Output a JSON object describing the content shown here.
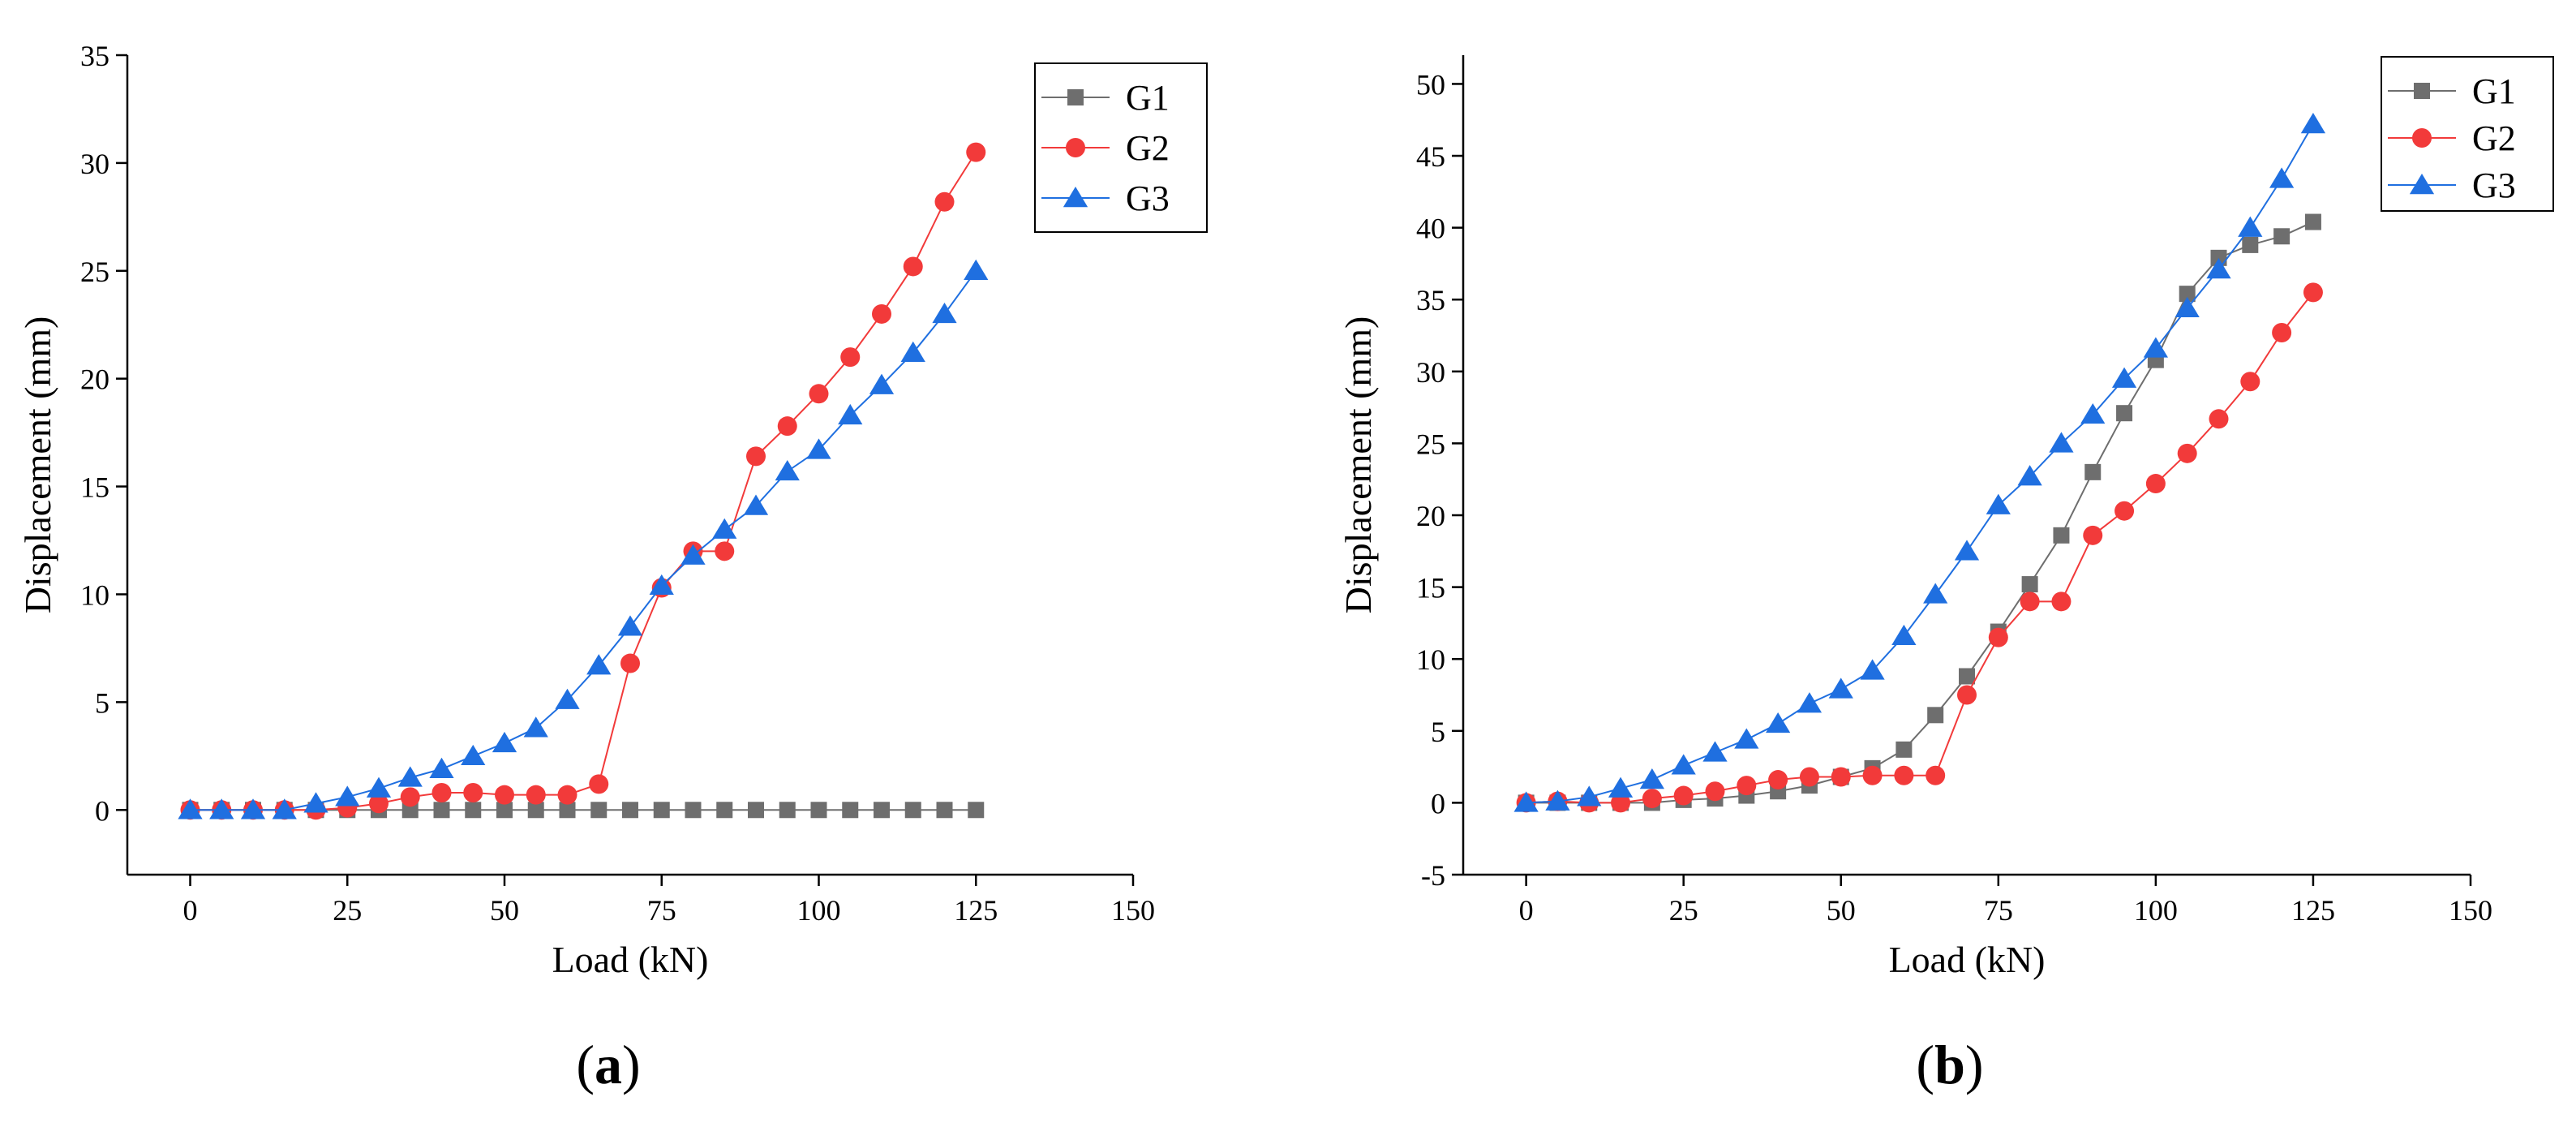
{
  "figure": {
    "panels": [
      {
        "open": "(",
        "letter": "a",
        "close": ")"
      },
      {
        "open": "(",
        "letter": "b",
        "close": ")"
      }
    ]
  },
  "chart_data": [
    {
      "type": "line",
      "title": "",
      "panel_label": "(a)",
      "xlabel": "Load (kN)",
      "ylabel": "Displacement (mm)",
      "xlim": [
        -10,
        150
      ],
      "ylim": [
        -3,
        35
      ],
      "xticks": [
        0,
        25,
        50,
        75,
        100,
        125,
        150
      ],
      "yticks": [
        0,
        5,
        10,
        15,
        20,
        25,
        30,
        35
      ],
      "legend_position": "top-right",
      "x": [
        0,
        5,
        10,
        15,
        20,
        25,
        30,
        35,
        40,
        45,
        50,
        55,
        60,
        65,
        70,
        75,
        80,
        85,
        90,
        95,
        100,
        105,
        110,
        115,
        120,
        125
      ],
      "series": [
        {
          "name": "G1",
          "color": "#6e6e6e",
          "marker": "square",
          "values": [
            0,
            0,
            0,
            0,
            0,
            0,
            0,
            0,
            0,
            0,
            0,
            0,
            0,
            0,
            0,
            0,
            0,
            0,
            0,
            0,
            0,
            0,
            0,
            0,
            0,
            0
          ]
        },
        {
          "name": "G2",
          "color": "#f23a3a",
          "marker": "circle",
          "values": [
            0,
            0,
            0,
            0,
            0,
            0.1,
            0.3,
            0.6,
            0.8,
            0.8,
            0.7,
            0.7,
            0.7,
            1.2,
            6.8,
            10.3,
            12.0,
            12.0,
            16.4,
            17.8,
            19.3,
            21.0,
            23.0,
            25.2,
            28.2,
            30.5
          ]
        },
        {
          "name": "G3",
          "color": "#1f6fe0",
          "marker": "triangle",
          "values": [
            0,
            0,
            0,
            0,
            0.3,
            0.6,
            1.0,
            1.5,
            1.9,
            2.5,
            3.1,
            3.8,
            5.1,
            6.7,
            8.5,
            10.4,
            11.8,
            13.0,
            14.1,
            15.7,
            16.7,
            18.3,
            19.7,
            21.2,
            23.0,
            25.0
          ]
        }
      ]
    },
    {
      "type": "line",
      "title": "",
      "panel_label": "(b)",
      "xlabel": "Load (kN)",
      "ylabel": "Displacement (mm)",
      "xlim": [
        -10,
        150
      ],
      "ylim": [
        -5,
        52
      ],
      "xticks": [
        0,
        25,
        50,
        75,
        100,
        125,
        150
      ],
      "yticks": [
        -5,
        0,
        5,
        10,
        15,
        20,
        25,
        30,
        35,
        40,
        45,
        50
      ],
      "legend_position": "top-right",
      "x": [
        0,
        5,
        10,
        15,
        20,
        25,
        30,
        35,
        40,
        45,
        50,
        55,
        60,
        65,
        70,
        75,
        80,
        85,
        90,
        95,
        100,
        105,
        110,
        115,
        120,
        125
      ],
      "series": [
        {
          "name": "G1",
          "color": "#6e6e6e",
          "marker": "square",
          "values": [
            0,
            0,
            0,
            0,
            0,
            0.2,
            0.3,
            0.5,
            0.8,
            1.2,
            1.8,
            2.4,
            3.7,
            6.1,
            8.8,
            11.9,
            15.2,
            18.6,
            23.0,
            27.1,
            30.8,
            35.4,
            37.9,
            38.8,
            39.4,
            40.4
          ]
        },
        {
          "name": "G2",
          "color": "#f23a3a",
          "marker": "circle",
          "values": [
            0,
            0.1,
            0,
            0,
            0.3,
            0.5,
            0.8,
            1.2,
            1.6,
            1.8,
            1.8,
            1.9,
            1.9,
            1.9,
            7.5,
            11.5,
            14.0,
            14.0,
            18.6,
            20.3,
            22.2,
            24.3,
            26.7,
            29.3,
            32.7,
            35.5
          ]
        },
        {
          "name": "G3",
          "color": "#1f6fe0",
          "marker": "triangle",
          "values": [
            0,
            0.1,
            0.4,
            1.0,
            1.6,
            2.6,
            3.5,
            4.4,
            5.5,
            6.9,
            7.9,
            9.2,
            11.6,
            14.5,
            17.5,
            20.7,
            22.7,
            25.0,
            27.0,
            29.5,
            31.6,
            34.4,
            37.1,
            40.0,
            43.4,
            47.2
          ]
        }
      ]
    }
  ]
}
